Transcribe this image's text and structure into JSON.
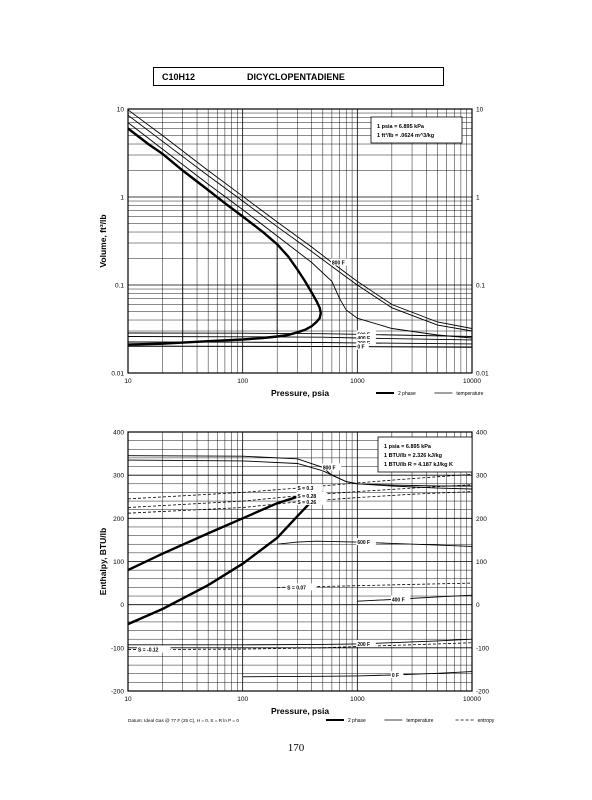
{
  "header": {
    "formula": "C10H12",
    "name": "DICYCLOPENTADIENE"
  },
  "page_number": "170",
  "chart_data": [
    {
      "type": "line",
      "xlabel": "Pressure,  psia",
      "ylabel": "Volume, ft^3/lb",
      "xscale": "log",
      "yscale": "log",
      "xlim": [
        10,
        10000
      ],
      "ylim": [
        0.01,
        10
      ],
      "x_ticks": [
        "10",
        "100",
        "1000",
        "10000"
      ],
      "y_ticks": [
        "0.01",
        "0.1",
        "1",
        "10"
      ],
      "grid": true,
      "info_box": [
        "1 psia  =  6.895 kPa",
        "1 ft^3/lb  =  .0624 m^3/kg"
      ],
      "legend": [
        "2 phase",
        "temperature"
      ],
      "legend_placement": "bottom-right",
      "series": [
        {
          "style": "2 phase",
          "x": [
            10,
            15,
            20,
            30,
            50,
            70,
            100,
            150,
            200,
            250,
            300,
            350,
            400,
            440,
            470,
            480,
            470,
            440,
            400,
            350,
            300,
            250,
            200,
            150,
            100,
            50,
            20,
            10
          ],
          "y": [
            6.0,
            4.0,
            3.1,
            2.0,
            1.2,
            0.85,
            0.6,
            0.4,
            0.29,
            0.21,
            0.15,
            0.11,
            0.082,
            0.066,
            0.055,
            0.048,
            0.042,
            0.038,
            0.034,
            0.031,
            0.029,
            0.027,
            0.026,
            0.025,
            0.024,
            0.023,
            0.0215,
            0.021
          ]
        },
        {
          "style": "temperature",
          "label": "",
          "x": [
            10,
            20,
            50,
            100,
            200,
            400,
            600,
            700,
            800,
            1000,
            2000,
            5000,
            10000
          ],
          "y": [
            7.0,
            3.5,
            1.4,
            0.72,
            0.36,
            0.18,
            0.11,
            0.07,
            0.052,
            0.042,
            0.032,
            0.027,
            0.025
          ]
        },
        {
          "style": "temperature",
          "label": "",
          "x": [
            10,
            20,
            50,
            100,
            200,
            400,
            700,
            1000,
            2000,
            5000,
            10000
          ],
          "y": [
            8.5,
            4.3,
            1.75,
            0.9,
            0.46,
            0.24,
            0.14,
            0.1,
            0.055,
            0.035,
            0.03
          ]
        },
        {
          "style": "temperature",
          "label": "800 F",
          "x": [
            10,
            20,
            50,
            100,
            200,
            400,
            600,
            1000,
            2000,
            5000,
            10000
          ],
          "y": [
            9.8,
            5.0,
            2.0,
            1.02,
            0.52,
            0.27,
            0.18,
            0.11,
            0.06,
            0.038,
            0.032
          ]
        },
        {
          "style": "temperature",
          "label": "500 F",
          "x": [
            10,
            100,
            500,
            1000,
            10000
          ],
          "y": [
            0.0285,
            0.0283,
            0.028,
            0.0275,
            0.026
          ]
        },
        {
          "style": "temperature",
          "label": "400 F",
          "x": [
            10,
            100,
            500,
            1000,
            10000
          ],
          "y": [
            0.026,
            0.0258,
            0.0255,
            0.025,
            0.0238
          ]
        },
        {
          "style": "temperature",
          "label": "200 F",
          "x": [
            10,
            100,
            500,
            1000,
            10000
          ],
          "y": [
            0.0225,
            0.0224,
            0.0222,
            0.022,
            0.0214
          ]
        },
        {
          "style": "temperature",
          "label": "0 F",
          "x": [
            10,
            100,
            500,
            1000,
            10000
          ],
          "y": [
            0.0202,
            0.0201,
            0.02,
            0.0199,
            0.0196
          ]
        }
      ],
      "isobar_drops": [
        {
          "x": 30,
          "y_top": 2.0,
          "y_bottom": 0.0215
        },
        {
          "x": 200,
          "y_top": 0.29,
          "y_bottom": 0.026
        }
      ]
    },
    {
      "type": "line",
      "xlabel": "Pressure,  psia",
      "ylabel": "Enthalpy, BTU/lb",
      "xscale": "log",
      "yscale": "linear",
      "xlim": [
        10,
        10000
      ],
      "ylim": [
        -200,
        400
      ],
      "x_ticks": [
        "10",
        "100",
        "1000",
        "10000"
      ],
      "y_ticks": [
        "-200",
        "-100",
        "0",
        "100",
        "200",
        "300",
        "400"
      ],
      "grid": true,
      "info_box": [
        "1 psia  =  6.895 kPa",
        "1 BTU/lb  =  2.326 kJ/kg",
        "1 BTU/lb R  =  4.187 kJ/kg K"
      ],
      "datum_note": "Datum: Ideal Gas @ 77 F (25 C),  H = 0,  S = R ln P = 0",
      "legend": [
        "2 phase",
        "temperature",
        "entropy"
      ],
      "legend_placement": "bottom-right",
      "series": [
        {
          "style": "2 phase",
          "x": [
            10,
            20,
            50,
            100,
            200,
            300,
            400,
            440
          ],
          "y": [
            80,
            118,
            165,
            200,
            235,
            250,
            252,
            250
          ]
        },
        {
          "style": "2 phase",
          "x": [
            10,
            20,
            50,
            100,
            200,
            300,
            400,
            440
          ],
          "y": [
            -45,
            -10,
            45,
            95,
            155,
            205,
            240,
            250
          ]
        },
        {
          "style": "temperature",
          "label": "800 F",
          "x": [
            10,
            100,
            300,
            500,
            600,
            800,
            1000,
            2000,
            5000,
            10000
          ],
          "y": [
            345,
            344,
            338,
            318,
            300,
            285,
            280,
            277,
            275,
            275
          ]
        },
        {
          "style": "temperature",
          "label": "600 F",
          "x": [
            200,
            300,
            440,
            1000,
            2000,
            5000,
            10000
          ],
          "y": [
            140,
            145,
            147,
            145,
            142,
            138,
            135
          ]
        },
        {
          "style": "temperature",
          "label": "400 F",
          "x": [
            1000,
            2000,
            5000,
            10000
          ],
          "y": [
            8,
            12,
            18,
            22
          ]
        },
        {
          "style": "temperature",
          "label": "200 F",
          "x": [
            10,
            100,
            500,
            1000,
            2000,
            5000,
            10000
          ],
          "y": [
            -93,
            -93,
            -92,
            -91,
            -88,
            -84,
            -80
          ]
        },
        {
          "style": "temperature",
          "label": "0 F",
          "x": [
            100,
            500,
            1000,
            2000,
            5000,
            10000
          ],
          "y": [
            -167,
            -166,
            -165,
            -163,
            -159,
            -155
          ]
        },
        {
          "style": "temperature",
          "label": "",
          "x": [
            10,
            100,
            300,
            500,
            800,
            1000,
            2000,
            5000,
            10000
          ],
          "y": [
            335,
            333,
            327,
            310,
            285,
            280,
            275,
            270,
            268
          ]
        },
        {
          "style": "entropy",
          "label": "S = 0.3",
          "x": [
            10,
            100,
            300,
            1000,
            3000,
            10000
          ],
          "y": [
            245,
            260,
            270,
            282,
            292,
            302
          ]
        },
        {
          "style": "entropy",
          "label": "S = 0.28",
          "x": [
            10,
            100,
            300,
            1000,
            3000,
            10000
          ],
          "y": [
            225,
            240,
            252,
            262,
            270,
            278
          ]
        },
        {
          "style": "entropy",
          "label": "S = 0.26",
          "x": [
            10,
            100,
            300,
            1000,
            3000,
            10000
          ],
          "y": [
            212,
            225,
            238,
            248,
            256,
            262
          ]
        },
        {
          "style": "entropy",
          "label": "S = 0.07",
          "x": [
            200,
            500,
            1000,
            3000,
            10000
          ],
          "y": [
            40,
            42,
            44,
            47,
            50
          ]
        },
        {
          "style": "entropy",
          "label": "S = -0.12",
          "x": [
            10,
            100,
            500,
            1000,
            3000,
            10000
          ],
          "y": [
            -104,
            -103,
            -100,
            -97,
            -93,
            -88
          ]
        }
      ],
      "isobar_drops": [
        {
          "x": 200,
          "y_top": 235,
          "y_bottom": 155
        }
      ]
    }
  ]
}
